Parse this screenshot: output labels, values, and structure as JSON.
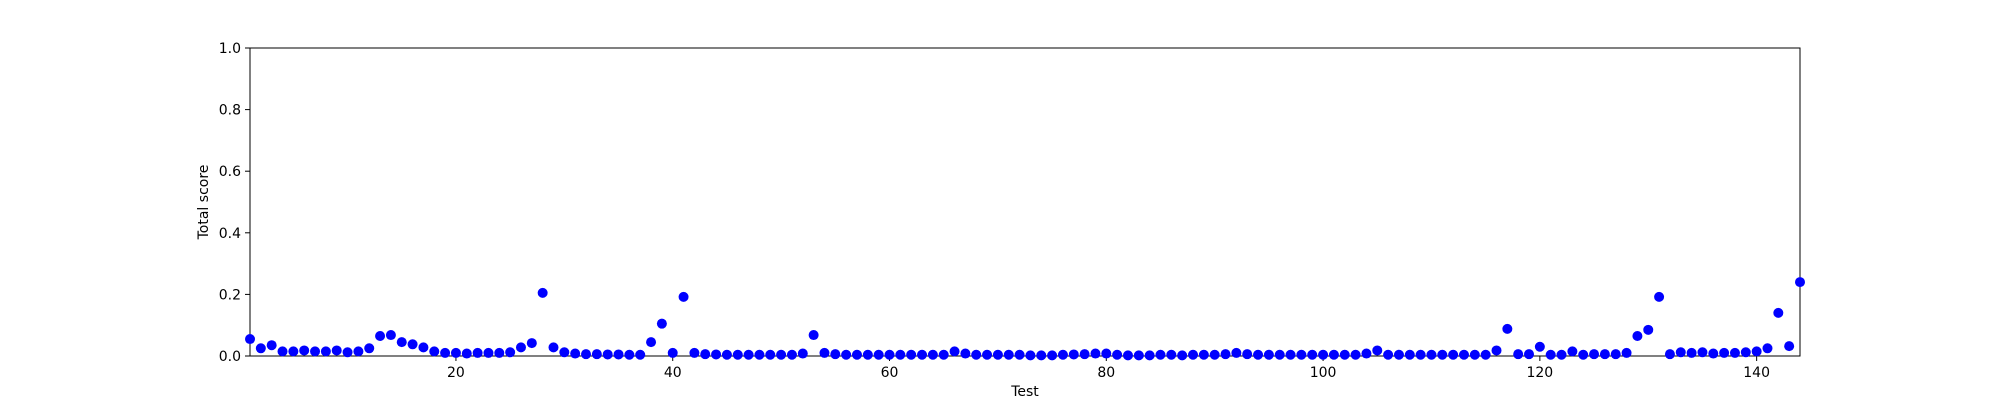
{
  "chart_data": {
    "type": "scatter",
    "title": "",
    "xlabel": "Test",
    "ylabel": "Total score",
    "xlim": [
      1,
      144
    ],
    "ylim": [
      0,
      1
    ],
    "x_ticks": [
      20,
      40,
      60,
      80,
      100,
      120,
      140
    ],
    "y_ticks": [
      0.0,
      0.2,
      0.4,
      0.6,
      0.8,
      1.0
    ],
    "x_tick_labels": [
      "20",
      "40",
      "60",
      "80",
      "100",
      "120",
      "140"
    ],
    "y_tick_labels": [
      "0.0",
      "0.2",
      "0.4",
      "0.6",
      "0.8",
      "1.0"
    ],
    "grid": false,
    "legend": "none",
    "marker_color": "#0000ff",
    "series": [
      {
        "x": [
          1,
          2,
          3,
          4,
          5,
          6,
          7,
          8,
          9,
          10,
          11,
          12,
          13,
          14,
          15,
          16,
          17,
          18,
          19,
          20,
          21,
          22,
          23,
          24,
          25,
          26,
          27,
          28,
          29,
          30,
          31,
          32,
          33,
          34,
          35,
          36,
          37,
          38,
          39,
          40,
          41,
          42,
          43,
          44,
          45,
          46,
          47,
          48,
          49,
          50,
          51,
          52,
          53,
          54,
          55,
          56,
          57,
          58,
          59,
          60,
          61,
          62,
          63,
          64,
          65,
          66,
          67,
          68,
          69,
          70,
          71,
          72,
          73,
          74,
          75,
          76,
          77,
          78,
          79,
          80,
          81,
          82,
          83,
          84,
          85,
          86,
          87,
          88,
          89,
          90,
          91,
          92,
          93,
          94,
          95,
          96,
          97,
          98,
          99,
          100,
          101,
          102,
          103,
          104,
          105,
          106,
          107,
          108,
          109,
          110,
          111,
          112,
          113,
          114,
          115,
          116,
          117,
          118,
          119,
          120,
          121,
          122,
          123,
          124,
          125,
          126,
          127,
          128,
          129,
          130,
          131,
          132,
          133,
          134,
          135,
          136,
          137,
          138,
          139,
          140,
          141,
          142,
          143,
          144
        ],
        "y": [
          0.055,
          0.025,
          0.035,
          0.015,
          0.015,
          0.018,
          0.015,
          0.015,
          0.018,
          0.012,
          0.015,
          0.025,
          0.065,
          0.068,
          0.045,
          0.038,
          0.028,
          0.015,
          0.01,
          0.01,
          0.008,
          0.01,
          0.01,
          0.01,
          0.012,
          0.028,
          0.042,
          0.205,
          0.028,
          0.012,
          0.008,
          0.006,
          0.006,
          0.005,
          0.005,
          0.004,
          0.004,
          0.045,
          0.105,
          0.01,
          0.192,
          0.01,
          0.006,
          0.005,
          0.004,
          0.004,
          0.004,
          0.004,
          0.004,
          0.004,
          0.004,
          0.008,
          0.068,
          0.01,
          0.006,
          0.004,
          0.004,
          0.004,
          0.004,
          0.004,
          0.004,
          0.004,
          0.004,
          0.004,
          0.004,
          0.015,
          0.008,
          0.004,
          0.004,
          0.004,
          0.004,
          0.004,
          0.002,
          0.002,
          0.002,
          0.004,
          0.005,
          0.006,
          0.008,
          0.008,
          0.004,
          0.002,
          0.002,
          0.002,
          0.004,
          0.004,
          0.002,
          0.004,
          0.004,
          0.004,
          0.006,
          0.01,
          0.006,
          0.004,
          0.004,
          0.004,
          0.004,
          0.004,
          0.004,
          0.004,
          0.004,
          0.004,
          0.004,
          0.008,
          0.018,
          0.004,
          0.004,
          0.004,
          0.004,
          0.004,
          0.004,
          0.004,
          0.004,
          0.004,
          0.004,
          0.018,
          0.088,
          0.006,
          0.006,
          0.03,
          0.004,
          0.004,
          0.015,
          0.004,
          0.006,
          0.006,
          0.006,
          0.01,
          0.065,
          0.085,
          0.192,
          0.006,
          0.012,
          0.01,
          0.012,
          0.008,
          0.01,
          0.01,
          0.012,
          0.015,
          0.025,
          0.14,
          0.032,
          0.24
        ]
      }
    ]
  }
}
